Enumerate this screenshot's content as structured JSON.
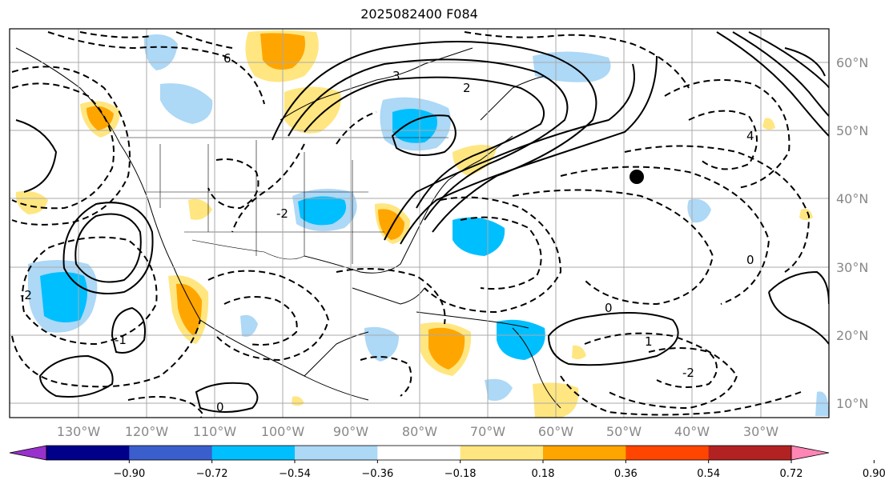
{
  "title": "2025082400 F084",
  "map": {
    "lat_labels": [
      "60°N",
      "50°N",
      "40°N",
      "30°N",
      "20°N",
      "10°N"
    ],
    "lon_labels": [
      "130°W",
      "120°W",
      "110°W",
      "100°W",
      "90°W",
      "80°W",
      "70°W",
      "60°W",
      "50°W",
      "40°W",
      "30°W"
    ],
    "contour_labels": [
      "6",
      "3",
      "2",
      "4",
      "0",
      "-2",
      "1",
      "-1"
    ],
    "hurricane_symbol": "storm-marker"
  },
  "colorbar": {
    "ticks": [
      "−0.90",
      "−0.72",
      "−0.54",
      "−0.36",
      "−0.18",
      "0.18",
      "0.36",
      "0.54",
      "0.72",
      "0.90"
    ],
    "colors": [
      "#9932cc",
      "#00008b",
      "#3a5fcd",
      "#00bfff",
      "#add8f6",
      "#ffffff",
      "#ffe680",
      "#ffa500",
      "#ff4500",
      "#b22222",
      "#ff85b4"
    ]
  }
}
